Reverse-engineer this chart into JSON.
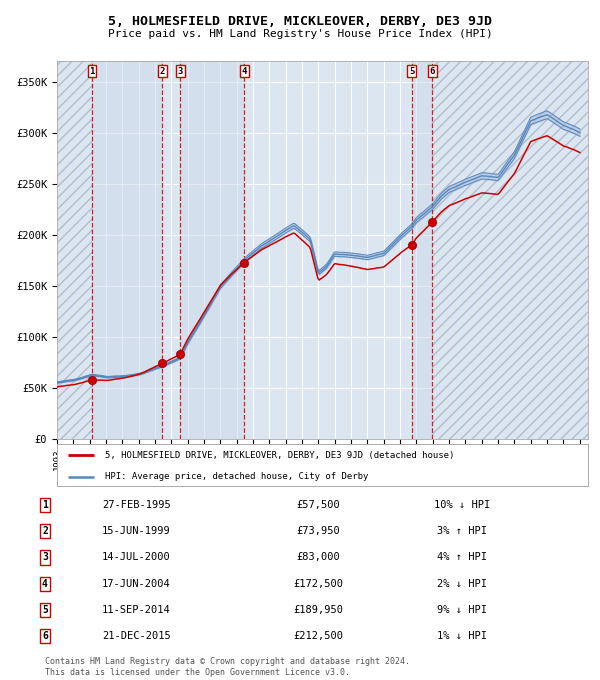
{
  "title": "5, HOLMESFIELD DRIVE, MICKLEOVER, DERBY, DE3 9JD",
  "subtitle": "Price paid vs. HM Land Registry's House Price Index (HPI)",
  "ylim": [
    0,
    370000
  ],
  "yticks": [
    0,
    50000,
    100000,
    150000,
    200000,
    250000,
    300000,
    350000
  ],
  "ytick_labels": [
    "£0",
    "£50K",
    "£100K",
    "£150K",
    "£200K",
    "£250K",
    "£300K",
    "£350K"
  ],
  "background_color": "#ffffff",
  "plot_bg_color": "#dce6f1",
  "grid_color": "#ffffff",
  "sales": [
    {
      "num": 1,
      "year_x": 1995.15,
      "price": 57500
    },
    {
      "num": 2,
      "year_x": 1999.45,
      "price": 73950
    },
    {
      "num": 3,
      "year_x": 2000.54,
      "price": 83000
    },
    {
      "num": 4,
      "year_x": 2004.46,
      "price": 172500
    },
    {
      "num": 5,
      "year_x": 2014.7,
      "price": 189950
    },
    {
      "num": 6,
      "year_x": 2015.97,
      "price": 212500
    }
  ],
  "xlim_left": 1993.0,
  "xlim_right": 2025.5,
  "legend_label_red": "5, HOLMESFIELD DRIVE, MICKLEOVER, DERBY, DE3 9JD (detached house)",
  "legend_label_blue": "HPI: Average price, detached house, City of Derby",
  "footer": "Contains HM Land Registry data © Crown copyright and database right 2024.\nThis data is licensed under the Open Government Licence v3.0.",
  "table_rows": [
    {
      "num": 1,
      "date": "27-FEB-1995",
      "price": "£57,500",
      "pct": "10% ↓ HPI"
    },
    {
      "num": 2,
      "date": "15-JUN-1999",
      "price": "£73,950",
      "pct": "3% ↑ HPI"
    },
    {
      "num": 3,
      "date": "14-JUL-2000",
      "price": "£83,000",
      "pct": "4% ↑ HPI"
    },
    {
      "num": 4,
      "date": "17-JUN-2004",
      "price": "£172,500",
      "pct": "2% ↓ HPI"
    },
    {
      "num": 5,
      "date": "11-SEP-2014",
      "price": "£189,950",
      "pct": "9% ↓ HPI"
    },
    {
      "num": 6,
      "date": "21-DEC-2015",
      "price": "£212,500",
      "pct": "1% ↓ HPI"
    }
  ],
  "red_color": "#cc0000",
  "blue_color": "#5588bb",
  "blue_fill": "#aabbdd"
}
